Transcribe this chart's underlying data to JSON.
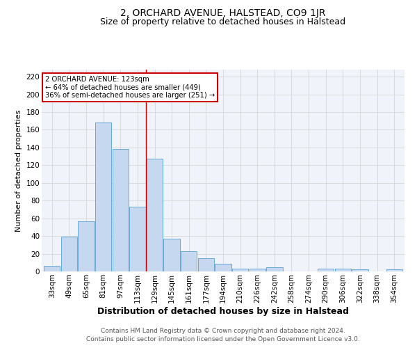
{
  "title": "2, ORCHARD AVENUE, HALSTEAD, CO9 1JR",
  "subtitle": "Size of property relative to detached houses in Halstead",
  "xlabel": "Distribution of detached houses by size in Halstead",
  "ylabel": "Number of detached properties",
  "categories": [
    "33sqm",
    "49sqm",
    "65sqm",
    "81sqm",
    "97sqm",
    "113sqm",
    "129sqm",
    "145sqm",
    "161sqm",
    "177sqm",
    "194sqm",
    "210sqm",
    "226sqm",
    "242sqm",
    "258sqm",
    "274sqm",
    "290sqm",
    "306sqm",
    "322sqm",
    "338sqm",
    "354sqm"
  ],
  "values": [
    6,
    39,
    57,
    168,
    138,
    73,
    127,
    37,
    23,
    15,
    9,
    3,
    3,
    5,
    0,
    0,
    3,
    3,
    2,
    0,
    2
  ],
  "bar_color": "#c5d8ef",
  "bar_edge_color": "#6aaad4",
  "vline_x": 5.5,
  "vline_color": "#cc0000",
  "annotation_line1": "2 ORCHARD AVENUE: 123sqm",
  "annotation_line2": "← 64% of detached houses are smaller (449)",
  "annotation_line3": "36% of semi-detached houses are larger (251) →",
  "annotation_box_color": "#ffffff",
  "annotation_box_edge_color": "#cc0000",
  "ylim": [
    0,
    228
  ],
  "yticks": [
    0,
    20,
    40,
    60,
    80,
    100,
    120,
    140,
    160,
    180,
    200,
    220
  ],
  "footer_text": "Contains HM Land Registry data © Crown copyright and database right 2024.\nContains public sector information licensed under the Open Government Licence v3.0.",
  "grid_color": "#d0d0d0",
  "background_color": "#ffffff",
  "plot_bg_color": "#f0f4fa",
  "title_fontsize": 10,
  "subtitle_fontsize": 9,
  "xlabel_fontsize": 9,
  "ylabel_fontsize": 8,
  "tick_fontsize": 7.5,
  "footer_fontsize": 6.5
}
